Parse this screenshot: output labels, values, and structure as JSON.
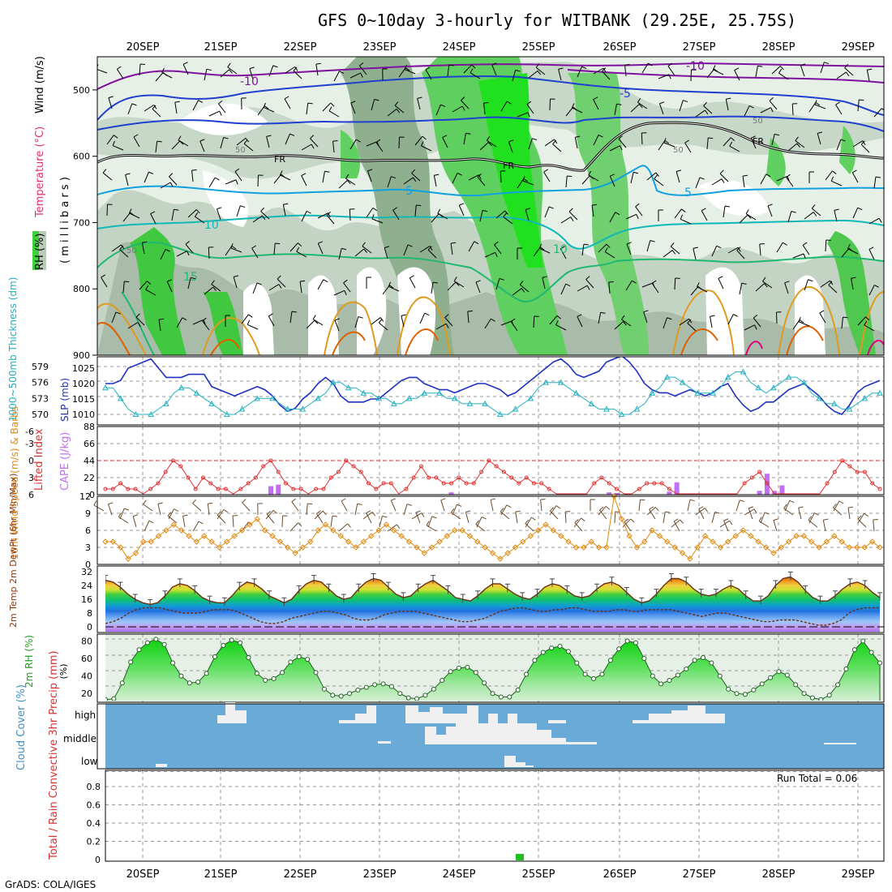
{
  "title": "GFS 0~10day 3-hourly for WITBANK (29.25E, 25.75S)",
  "dates": [
    "20SEP",
    "21SEP",
    "22SEP",
    "23SEP",
    "24SEP",
    "25SEP",
    "26SEP",
    "27SEP",
    "28SEP",
    "29SEP"
  ],
  "credit": "GrADS: COLA/IGES",
  "colors": {
    "rh_light": "#e4f0e4",
    "rh_mid": "#b8ccb8",
    "rh_dark": "#9eaf9e",
    "rh_green": "#3fcf3f",
    "rh_bright": "#20e020",
    "temp_purple": "#8010a0",
    "temp_blue": "#2040d0",
    "temp_fr": "#000000",
    "temp_lightblue": "#10a0e0",
    "temp_cyan": "#10b8b8",
    "temp_green": "#20b870",
    "temp_orange": "#e09a20",
    "temp_magenta": "#e00080",
    "slp": "#2030c0",
    "thickness": "#20b0c0",
    "li": "#e03030",
    "cape": "#c070f0",
    "wind": "#e08a10",
    "rh2m": "#30c030",
    "cloud_bg": "#6aaad6",
    "cloud_fill": "#f0f0f0",
    "precip": "#20c020"
  },
  "chart_data": [
    {
      "type": "heatmap",
      "panel": "upper-air",
      "ylabel_parts": [
        "Wind (m/s)",
        "Temperature (°C)",
        "RH (%)",
        "( m i l l i b a r s )"
      ],
      "yticks": [
        500,
        600,
        700,
        800,
        900
      ],
      "ylim": [
        900,
        450
      ],
      "contour_labels": [
        "-10",
        "-10",
        "-5",
        "FR",
        "FR",
        "FR",
        "5",
        "5",
        "10",
        "10",
        "15",
        "50",
        "50",
        "50",
        "50"
      ],
      "temperature_levels_C": [
        -10,
        -5,
        0,
        5,
        10,
        15
      ]
    },
    {
      "type": "line",
      "panel": "slp-thickness",
      "ylabel_left": "1000~500mb Thickness (dm)",
      "ylabel_right": "SLP (mb)",
      "yticks_left": [
        570,
        573,
        576,
        579
      ],
      "yticks_right": [
        1010,
        1015,
        1020,
        1025
      ],
      "series": [
        {
          "name": "SLP (mb)",
          "values": [
            1020,
            1020,
            1021,
            1025,
            1026,
            1027,
            1028,
            1025,
            1022,
            1022,
            1022,
            1023,
            1023,
            1023,
            1019,
            1018,
            1017,
            1016,
            1017,
            1018,
            1019,
            1018,
            1016,
            1013,
            1011,
            1012,
            1015,
            1017,
            1020,
            1022,
            1020,
            1016,
            1014,
            1014,
            1014,
            1015,
            1015,
            1017,
            1019,
            1021,
            1022,
            1022,
            1020,
            1019,
            1018,
            1018,
            1017,
            1018,
            1019,
            1020,
            1020,
            1019,
            1018,
            1016,
            1017,
            1019,
            1021,
            1023,
            1025,
            1027,
            1028,
            1026,
            1023,
            1022,
            1023,
            1024,
            1027,
            1028,
            1029,
            1027,
            1024,
            1020,
            1018,
            1017,
            1017,
            1016,
            1017,
            1018,
            1017,
            1016,
            1017,
            1019,
            1020,
            1016,
            1013,
            1011,
            1012,
            1014,
            1014,
            1016,
            1018,
            1019,
            1020,
            1018,
            1016,
            1013,
            1011,
            1010,
            1013,
            1017,
            1019,
            1020,
            1021
          ]
        },
        {
          "name": "Thickness (dm)",
          "values": [
            575,
            575,
            573,
            571,
            570,
            570,
            570,
            571,
            572,
            574,
            575,
            575,
            574,
            573,
            572,
            571,
            570,
            570,
            571,
            572,
            573,
            573,
            573,
            572,
            571,
            571,
            571,
            572,
            573,
            574,
            576,
            576,
            575,
            575,
            574,
            574,
            573,
            573,
            572,
            572,
            573,
            573,
            574,
            574,
            574,
            573,
            573,
            572,
            572,
            572,
            572,
            571,
            570,
            570,
            571,
            572,
            573,
            575,
            576,
            576,
            576,
            575,
            574,
            573,
            572,
            571,
            571,
            571,
            570,
            570,
            571,
            572,
            574,
            575,
            577,
            577,
            576,
            575,
            574,
            574,
            574,
            575,
            577,
            578,
            578,
            576,
            575,
            574,
            575,
            576,
            577,
            577,
            576,
            574,
            573,
            572,
            572,
            571,
            571,
            572,
            573,
            574,
            574
          ]
        }
      ]
    },
    {
      "type": "bar",
      "panel": "li-cape",
      "ylabel_left": "Lifted Index",
      "ylabel_right": "CAPE (J/kg)",
      "yticks_left": [
        "-6",
        "-3",
        "0",
        "3",
        "6"
      ],
      "yticks_right": [
        0,
        22,
        44,
        66,
        88
      ],
      "series": [
        {
          "name": "Lifted Index",
          "values": [
            5,
            5,
            4,
            5,
            5,
            6,
            5,
            4,
            2,
            0,
            1,
            3,
            5,
            3,
            4,
            5,
            5,
            6,
            5,
            4,
            3,
            1,
            0,
            2,
            4,
            5,
            5,
            6,
            5,
            5,
            3,
            2,
            0,
            1,
            2,
            4,
            5,
            4,
            4,
            6,
            5,
            3,
            1,
            3,
            3,
            4,
            4,
            3,
            4,
            4,
            2,
            0,
            1,
            2,
            3,
            4,
            3,
            4,
            4,
            5,
            7,
            8,
            9,
            8,
            6,
            4,
            3,
            4,
            5,
            6,
            6,
            5,
            4,
            4,
            4,
            5,
            7,
            8,
            9,
            8,
            9,
            8,
            9,
            9,
            7,
            4,
            3,
            2,
            4,
            6,
            7,
            7,
            8,
            9,
            8,
            7,
            4,
            2,
            0,
            1,
            2,
            2,
            4,
            5
          ]
        },
        {
          "name": "CAPE (J/kg)",
          "values": [
            0,
            0,
            0,
            0,
            0,
            0,
            0,
            0,
            0,
            0,
            0,
            0,
            0,
            0,
            0,
            0,
            0,
            0,
            0,
            0,
            0,
            0,
            11,
            13,
            0,
            0,
            0,
            0,
            0,
            0,
            0,
            0,
            0,
            0,
            0,
            0,
            0,
            0,
            0,
            0,
            0,
            0,
            0,
            0,
            0,
            0,
            3,
            0,
            0,
            0,
            0,
            0,
            0,
            0,
            0,
            0,
            0,
            0,
            0,
            0,
            0,
            0,
            0,
            0,
            0,
            0,
            0,
            3,
            2,
            0,
            0,
            0,
            0,
            0,
            0,
            4,
            16,
            0,
            0,
            0,
            0,
            0,
            0,
            0,
            0,
            0,
            0,
            5,
            27,
            5,
            12,
            0,
            0,
            0,
            0,
            0,
            0,
            0,
            0,
            0,
            0,
            0,
            0,
            0
          ]
        }
      ]
    },
    {
      "type": "line",
      "panel": "wind10m",
      "ylabel": "10m Wind Speed (m/s) & Barbs",
      "yticks": [
        0,
        3,
        6,
        9,
        12
      ],
      "values": [
        4,
        4,
        3,
        1,
        2,
        4,
        4,
        5,
        6,
        7,
        6,
        5,
        4,
        5,
        4,
        3,
        4,
        5,
        6,
        7,
        8,
        6,
        5,
        4,
        3,
        2,
        3,
        4,
        6,
        7,
        6,
        5,
        4,
        3,
        4,
        5,
        6,
        7,
        6,
        5,
        4,
        3,
        2,
        3,
        4,
        5,
        6,
        6,
        5,
        4,
        3,
        2,
        1,
        2,
        3,
        4,
        5,
        6,
        7,
        6,
        5,
        4,
        3,
        3,
        4,
        3,
        3,
        12,
        8,
        5,
        3,
        4,
        6,
        5,
        4,
        3,
        2,
        1,
        3,
        5,
        4,
        3,
        4,
        5,
        6,
        5,
        4,
        3,
        2,
        3,
        4,
        5,
        5,
        4,
        3,
        4,
        5,
        4,
        3,
        3,
        3,
        4,
        3
      ]
    },
    {
      "type": "area",
      "panel": "temp2m",
      "ylabel": "2m Temp 2m DewPt (6hr Min/Max)",
      "yticks": [
        0,
        8,
        16,
        24,
        32
      ],
      "series": [
        {
          "name": "2m Temp",
          "values": [
            27,
            26,
            23,
            19,
            16,
            14,
            13,
            14,
            18,
            23,
            25,
            24,
            21,
            17,
            15,
            14,
            14,
            18,
            23,
            26,
            25,
            22,
            18,
            16,
            14,
            16,
            21,
            25,
            27,
            26,
            22,
            18,
            16,
            17,
            22,
            26,
            28,
            27,
            23,
            19,
            17,
            18,
            22,
            25,
            27,
            24,
            21,
            17,
            16,
            15,
            18,
            22,
            25,
            25,
            22,
            19,
            17,
            16,
            19,
            23,
            25,
            24,
            21,
            18,
            17,
            18,
            22,
            25,
            26,
            24,
            20,
            16,
            14,
            15,
            19,
            24,
            28,
            28,
            26,
            22,
            19,
            18,
            19,
            22,
            24,
            22,
            18,
            15,
            15,
            18,
            24,
            28,
            29,
            26,
            21,
            17,
            15,
            15,
            18,
            22,
            25,
            26,
            24,
            20,
            17
          ]
        },
        {
          "name": "2m DewPt",
          "values": [
            2,
            3,
            5,
            8,
            10,
            11,
            11,
            11,
            10,
            9,
            8,
            8,
            8,
            9,
            10,
            10,
            10,
            9,
            7,
            5,
            3,
            2,
            2,
            3,
            5,
            6,
            7,
            8,
            9,
            9,
            8,
            7,
            5,
            4,
            4,
            5,
            7,
            8,
            9,
            9,
            9,
            8,
            7,
            6,
            5,
            4,
            3,
            3,
            4,
            5,
            7,
            9,
            10,
            11,
            11,
            10,
            9,
            9,
            10,
            10,
            11,
            11,
            10,
            9,
            9,
            9,
            10,
            10,
            9,
            9,
            10,
            10,
            10,
            10,
            9,
            8,
            7,
            6,
            7,
            8,
            8,
            7,
            6,
            5,
            4,
            3,
            3,
            4,
            4,
            4,
            3,
            2,
            1,
            1,
            2,
            4,
            8,
            10,
            11,
            11,
            11
          ]
        }
      ]
    },
    {
      "type": "area",
      "panel": "rh2m",
      "ylabel": "2m RH (%)",
      "yticks": [
        20,
        40,
        60,
        80
      ],
      "values": [
        13,
        14,
        32,
        56,
        70,
        78,
        82,
        76,
        55,
        40,
        32,
        33,
        43,
        62,
        75,
        81,
        78,
        61,
        43,
        35,
        37,
        44,
        56,
        62,
        59,
        44,
        25,
        18,
        17,
        20,
        24,
        27,
        30,
        31,
        28,
        20,
        15,
        14,
        18,
        25,
        35,
        45,
        49,
        50,
        44,
        32,
        20,
        16,
        16,
        24,
        42,
        58,
        67,
        72,
        74,
        68,
        55,
        42,
        37,
        42,
        58,
        71,
        80,
        78,
        60,
        40,
        31,
        35,
        41,
        48,
        58,
        61,
        55,
        40,
        25,
        20,
        19,
        24,
        31,
        38,
        45,
        41,
        30,
        20,
        15,
        13,
        18,
        30,
        48,
        70,
        80,
        67,
        55
      ]
    },
    {
      "type": "heatmap",
      "panel": "cloud",
      "ylabel": "Cloud Cover (%)",
      "rows": [
        "high",
        "middle",
        "low"
      ]
    },
    {
      "type": "bar",
      "panel": "precip",
      "ylabel": "Total / Rain Convective 3hr Precip (mm)",
      "yticks": [
        "0",
        "0.2",
        "0.4",
        "0.6",
        "0.8"
      ],
      "run_total": "Run Total = 0.06"
    }
  ]
}
